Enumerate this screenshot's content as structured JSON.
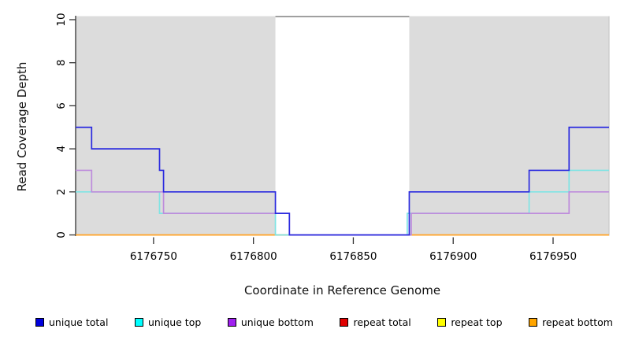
{
  "chart_data": {
    "type": "line",
    "subtype": "step-coverage",
    "title": "",
    "xlabel": "Coordinate in Reference Genome",
    "ylabel": "Read Coverage Depth",
    "xlim": [
      6176711,
      6176978
    ],
    "ylim": [
      0,
      10
    ],
    "x_ticks": [
      6176750,
      6176800,
      6176850,
      6176900,
      6176950
    ],
    "y_ticks": [
      0,
      2,
      4,
      6,
      8,
      10
    ],
    "grid": false,
    "legend_position": "bottom",
    "shaded_regions": [
      {
        "name": "left-shaded-region",
        "from": 6176711,
        "to": 6176811,
        "fill": "#DCDCDC"
      },
      {
        "name": "right-shaded-region",
        "from": 6176878,
        "to": 6176978,
        "fill": "#DCDCDC"
      }
    ],
    "gap_top_line": {
      "from": 6176811,
      "to": 6176878,
      "y": 10,
      "color": "#8A8A8A"
    },
    "series": [
      {
        "name": "repeat total",
        "legend_color": "#E00000",
        "line_color": "#E04040",
        "steps": [
          [
            6176711,
            0
          ]
        ]
      },
      {
        "name": "repeat top",
        "legend_color": "#FFFF00",
        "line_color": "#FFEE33",
        "steps": [
          [
            6176711,
            0
          ]
        ]
      },
      {
        "name": "repeat bottom",
        "legend_color": "#FFA500",
        "line_color": "#FFA435",
        "steps": [
          [
            6176711,
            0
          ]
        ]
      },
      {
        "name": "unique top",
        "legend_color": "#00FFFF",
        "line_color": "#7FE4E4",
        "steps": [
          [
            6176711,
            2
          ],
          [
            6176753,
            1
          ],
          [
            6176811,
            0
          ],
          [
            6176877,
            1
          ],
          [
            6176938,
            2
          ],
          [
            6176958,
            3
          ]
        ]
      },
      {
        "name": "unique bottom",
        "legend_color": "#A020F0",
        "line_color": "#BE8CDC",
        "steps": [
          [
            6176711,
            3
          ],
          [
            6176719,
            2
          ],
          [
            6176755,
            1
          ],
          [
            6176818,
            0
          ],
          [
            6176879,
            1
          ],
          [
            6176958,
            2
          ]
        ]
      },
      {
        "name": "unique total",
        "legend_color": "#0000DD",
        "line_color": "#2A2ADF",
        "steps": [
          [
            6176711,
            5
          ],
          [
            6176719,
            4
          ],
          [
            6176753,
            3
          ],
          [
            6176755,
            2
          ],
          [
            6176811,
            1
          ],
          [
            6176818,
            0
          ],
          [
            6176878,
            2
          ],
          [
            6176938,
            3
          ],
          [
            6176958,
            5
          ]
        ]
      }
    ],
    "legend_order": [
      "unique total",
      "unique top",
      "unique bottom",
      "repeat total",
      "repeat top",
      "repeat bottom"
    ],
    "axis_color": "#333333",
    "plot_bg": "#FFFFFF"
  }
}
